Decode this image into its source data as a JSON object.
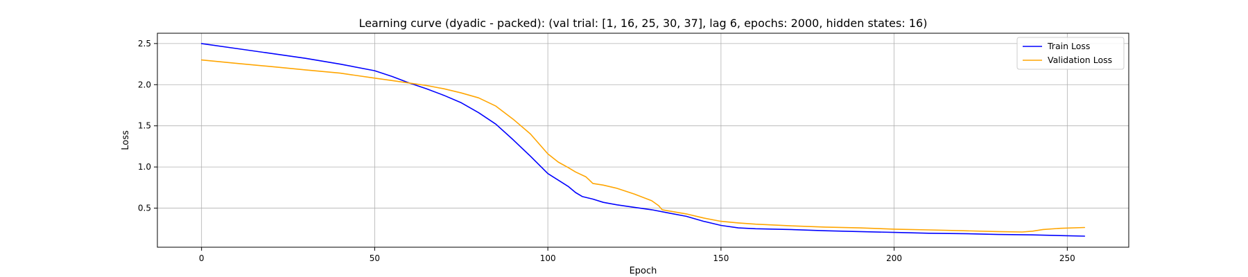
{
  "chart_data": {
    "type": "line",
    "title": "Learning curve (dyadic - packed): (val trial: [1, 16, 25, 30, 37], lag 6, epochs: 2000, hidden states: 16)",
    "xlabel": "Epoch",
    "ylabel": "Loss",
    "xlim": [
      -12.75,
      267.75
    ],
    "ylim": [
      0.025,
      2.625
    ],
    "xticks": [
      0,
      50,
      100,
      150,
      200,
      250
    ],
    "yticks": [
      0.5,
      1.0,
      1.5,
      2.0,
      2.5
    ],
    "xtick_labels": [
      "0",
      "50",
      "100",
      "150",
      "200",
      "250"
    ],
    "ytick_labels": [
      "0.5",
      "1.0",
      "1.5",
      "2.0",
      "2.5"
    ],
    "grid": true,
    "legend_position": "top-right",
    "series": [
      {
        "name": "Train Loss",
        "color": "#0000ff",
        "points": [
          [
            0,
            2.5
          ],
          [
            10,
            2.44
          ],
          [
            20,
            2.38
          ],
          [
            30,
            2.32
          ],
          [
            40,
            2.25
          ],
          [
            50,
            2.17
          ],
          [
            55,
            2.1
          ],
          [
            60,
            2.02
          ],
          [
            65,
            1.95
          ],
          [
            70,
            1.87
          ],
          [
            75,
            1.78
          ],
          [
            80,
            1.66
          ],
          [
            85,
            1.52
          ],
          [
            90,
            1.33
          ],
          [
            95,
            1.13
          ],
          [
            100,
            0.92
          ],
          [
            103,
            0.84
          ],
          [
            106,
            0.76
          ],
          [
            108,
            0.69
          ],
          [
            110,
            0.64
          ],
          [
            113,
            0.61
          ],
          [
            116,
            0.57
          ],
          [
            120,
            0.54
          ],
          [
            125,
            0.51
          ],
          [
            130,
            0.48
          ],
          [
            135,
            0.44
          ],
          [
            140,
            0.4
          ],
          [
            145,
            0.34
          ],
          [
            150,
            0.29
          ],
          [
            155,
            0.26
          ],
          [
            160,
            0.25
          ],
          [
            170,
            0.24
          ],
          [
            180,
            0.225
          ],
          [
            190,
            0.215
          ],
          [
            200,
            0.205
          ],
          [
            210,
            0.195
          ],
          [
            220,
            0.19
          ],
          [
            230,
            0.18
          ],
          [
            240,
            0.175
          ],
          [
            250,
            0.165
          ],
          [
            255,
            0.16
          ]
        ]
      },
      {
        "name": "Validation Loss",
        "color": "#ffa500",
        "points": [
          [
            0,
            2.3
          ],
          [
            10,
            2.26
          ],
          [
            20,
            2.22
          ],
          [
            30,
            2.18
          ],
          [
            40,
            2.14
          ],
          [
            50,
            2.08
          ],
          [
            55,
            2.05
          ],
          [
            60,
            2.02
          ],
          [
            65,
            1.99
          ],
          [
            70,
            1.95
          ],
          [
            75,
            1.9
          ],
          [
            80,
            1.84
          ],
          [
            85,
            1.74
          ],
          [
            90,
            1.58
          ],
          [
            95,
            1.4
          ],
          [
            100,
            1.16
          ],
          [
            103,
            1.06
          ],
          [
            106,
            0.99
          ],
          [
            108,
            0.94
          ],
          [
            111,
            0.88
          ],
          [
            112,
            0.84
          ],
          [
            113,
            0.8
          ],
          [
            116,
            0.78
          ],
          [
            120,
            0.74
          ],
          [
            125,
            0.67
          ],
          [
            130,
            0.59
          ],
          [
            132,
            0.53
          ],
          [
            133,
            0.48
          ],
          [
            140,
            0.43
          ],
          [
            145,
            0.38
          ],
          [
            150,
            0.34
          ],
          [
            155,
            0.32
          ],
          [
            160,
            0.305
          ],
          [
            170,
            0.285
          ],
          [
            180,
            0.27
          ],
          [
            190,
            0.26
          ],
          [
            200,
            0.245
          ],
          [
            210,
            0.235
          ],
          [
            220,
            0.225
          ],
          [
            230,
            0.215
          ],
          [
            237,
            0.21
          ],
          [
            240,
            0.22
          ],
          [
            243,
            0.24
          ],
          [
            248,
            0.255
          ],
          [
            255,
            0.265
          ]
        ]
      }
    ]
  }
}
